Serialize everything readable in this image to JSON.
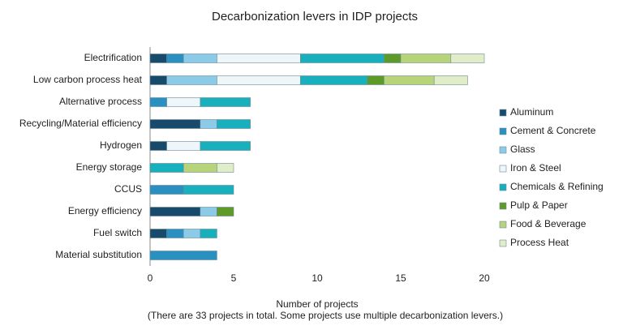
{
  "chart_data": {
    "type": "stacked_barh",
    "title": "Decarbonization levers in IDP projects",
    "xlabel": "Number of projects",
    "caption": "(There are 33 projects in total. Some projects use multiple decarbonization levers.)",
    "categories": [
      "Electrification",
      "Low carbon process heat",
      "Alternative process",
      "Recycling/Material efficiency",
      "Hydrogen",
      "Energy storage",
      "CCUS",
      "Energy efficiency",
      "Fuel switch",
      "Material substitution"
    ],
    "series": [
      {
        "name": "Aluminum",
        "color": "#184a6b",
        "values": [
          1,
          1,
          0,
          3,
          1,
          0,
          0,
          3,
          1,
          0
        ]
      },
      {
        "name": "Cement & Concrete",
        "color": "#2a90c2",
        "values": [
          1,
          0,
          1,
          0,
          0,
          0,
          2,
          0,
          1,
          4
        ]
      },
      {
        "name": "Glass",
        "color": "#8ccbe8",
        "values": [
          2,
          3,
          0,
          1,
          0,
          0,
          0,
          1,
          1,
          0
        ]
      },
      {
        "name": "Iron & Steel",
        "color": "#eef6fa",
        "values": [
          5,
          5,
          2,
          0,
          2,
          0,
          0,
          0,
          0,
          0
        ]
      },
      {
        "name": "Chemicals & Refining",
        "color": "#19b0bd",
        "values": [
          5,
          4,
          3,
          2,
          3,
          2,
          3,
          0,
          1,
          0
        ]
      },
      {
        "name": "Pulp & Paper",
        "color": "#5e9a28",
        "values": [
          1,
          1,
          0,
          0,
          0,
          0,
          0,
          1,
          0,
          0
        ]
      },
      {
        "name": "Food & Beverage",
        "color": "#b7d47b",
        "values": [
          3,
          3,
          0,
          0,
          0,
          2,
          0,
          0,
          0,
          0
        ]
      },
      {
        "name": "Process Heat",
        "color": "#e1edc9",
        "values": [
          2,
          2,
          0,
          0,
          0,
          1,
          0,
          0,
          0,
          0
        ]
      }
    ],
    "xlim": [
      0,
      20
    ],
    "xticks": [
      0,
      5,
      10,
      15,
      20
    ],
    "legend": "right"
  }
}
